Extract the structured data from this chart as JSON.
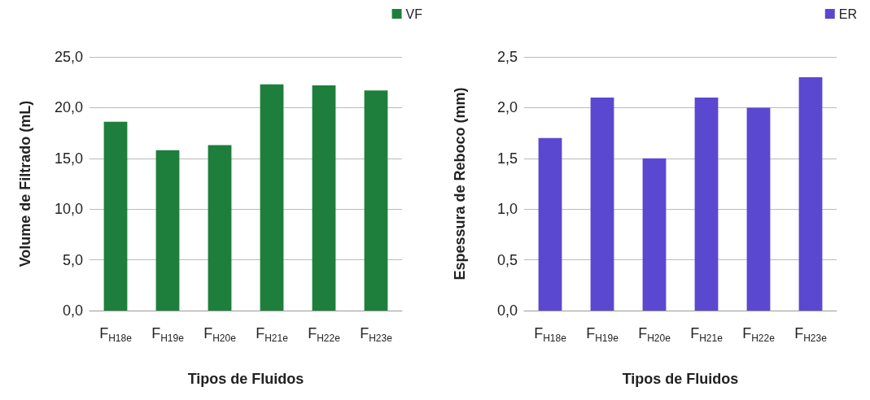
{
  "chart_data": [
    {
      "type": "bar",
      "xlabel": "Tipos de Fluidos",
      "ylabel": "Volume de Filtrado (mL)",
      "categories": [
        "F$_{H18e}$",
        "F$_{H19e}$",
        "F$_{H20e}$",
        "F$_{H21e}$",
        "F$_{H22e}$",
        "F$_{H23e}$"
      ],
      "series": [
        {
          "name": "VF",
          "color": "#1e7f3c",
          "values": [
            18.6,
            15.8,
            16.3,
            22.3,
            22.2,
            21.7
          ]
        }
      ],
      "ylim": [
        0,
        25
      ],
      "yticks": [
        {
          "value": 0,
          "label": "0,0"
        },
        {
          "value": 5,
          "label": "5,0"
        },
        {
          "value": 10,
          "label": "10,0"
        },
        {
          "value": 15,
          "label": "15,0"
        },
        {
          "value": 20,
          "label": "20,0"
        },
        {
          "value": 25,
          "label": "25,0"
        }
      ],
      "grid": "y",
      "legend": "top right"
    },
    {
      "type": "bar",
      "xlabel": "Tipos de Fluidos",
      "ylabel": "Espessura de Reboco (mm)",
      "categories": [
        "F$_{H18e}$",
        "F$_{H19e}$",
        "F$_{H20e}$",
        "F$_{H21e}$",
        "F$_{H22e}$",
        "F$_{H23e}$"
      ],
      "series": [
        {
          "name": "ER",
          "color": "#5b48d0",
          "values": [
            1.7,
            2.1,
            1.5,
            2.1,
            2.0,
            2.3
          ]
        }
      ],
      "ylim": [
        0,
        2.5
      ],
      "yticks": [
        {
          "value": 0,
          "label": "0,0"
        },
        {
          "value": 0.5,
          "label": "0,5"
        },
        {
          "value": 1,
          "label": "1,0"
        },
        {
          "value": 1.5,
          "label": "1,5"
        },
        {
          "value": 2,
          "label": "2,0"
        },
        {
          "value": 2.5,
          "label": "2,5"
        }
      ],
      "grid": "y",
      "legend": "top right"
    }
  ]
}
